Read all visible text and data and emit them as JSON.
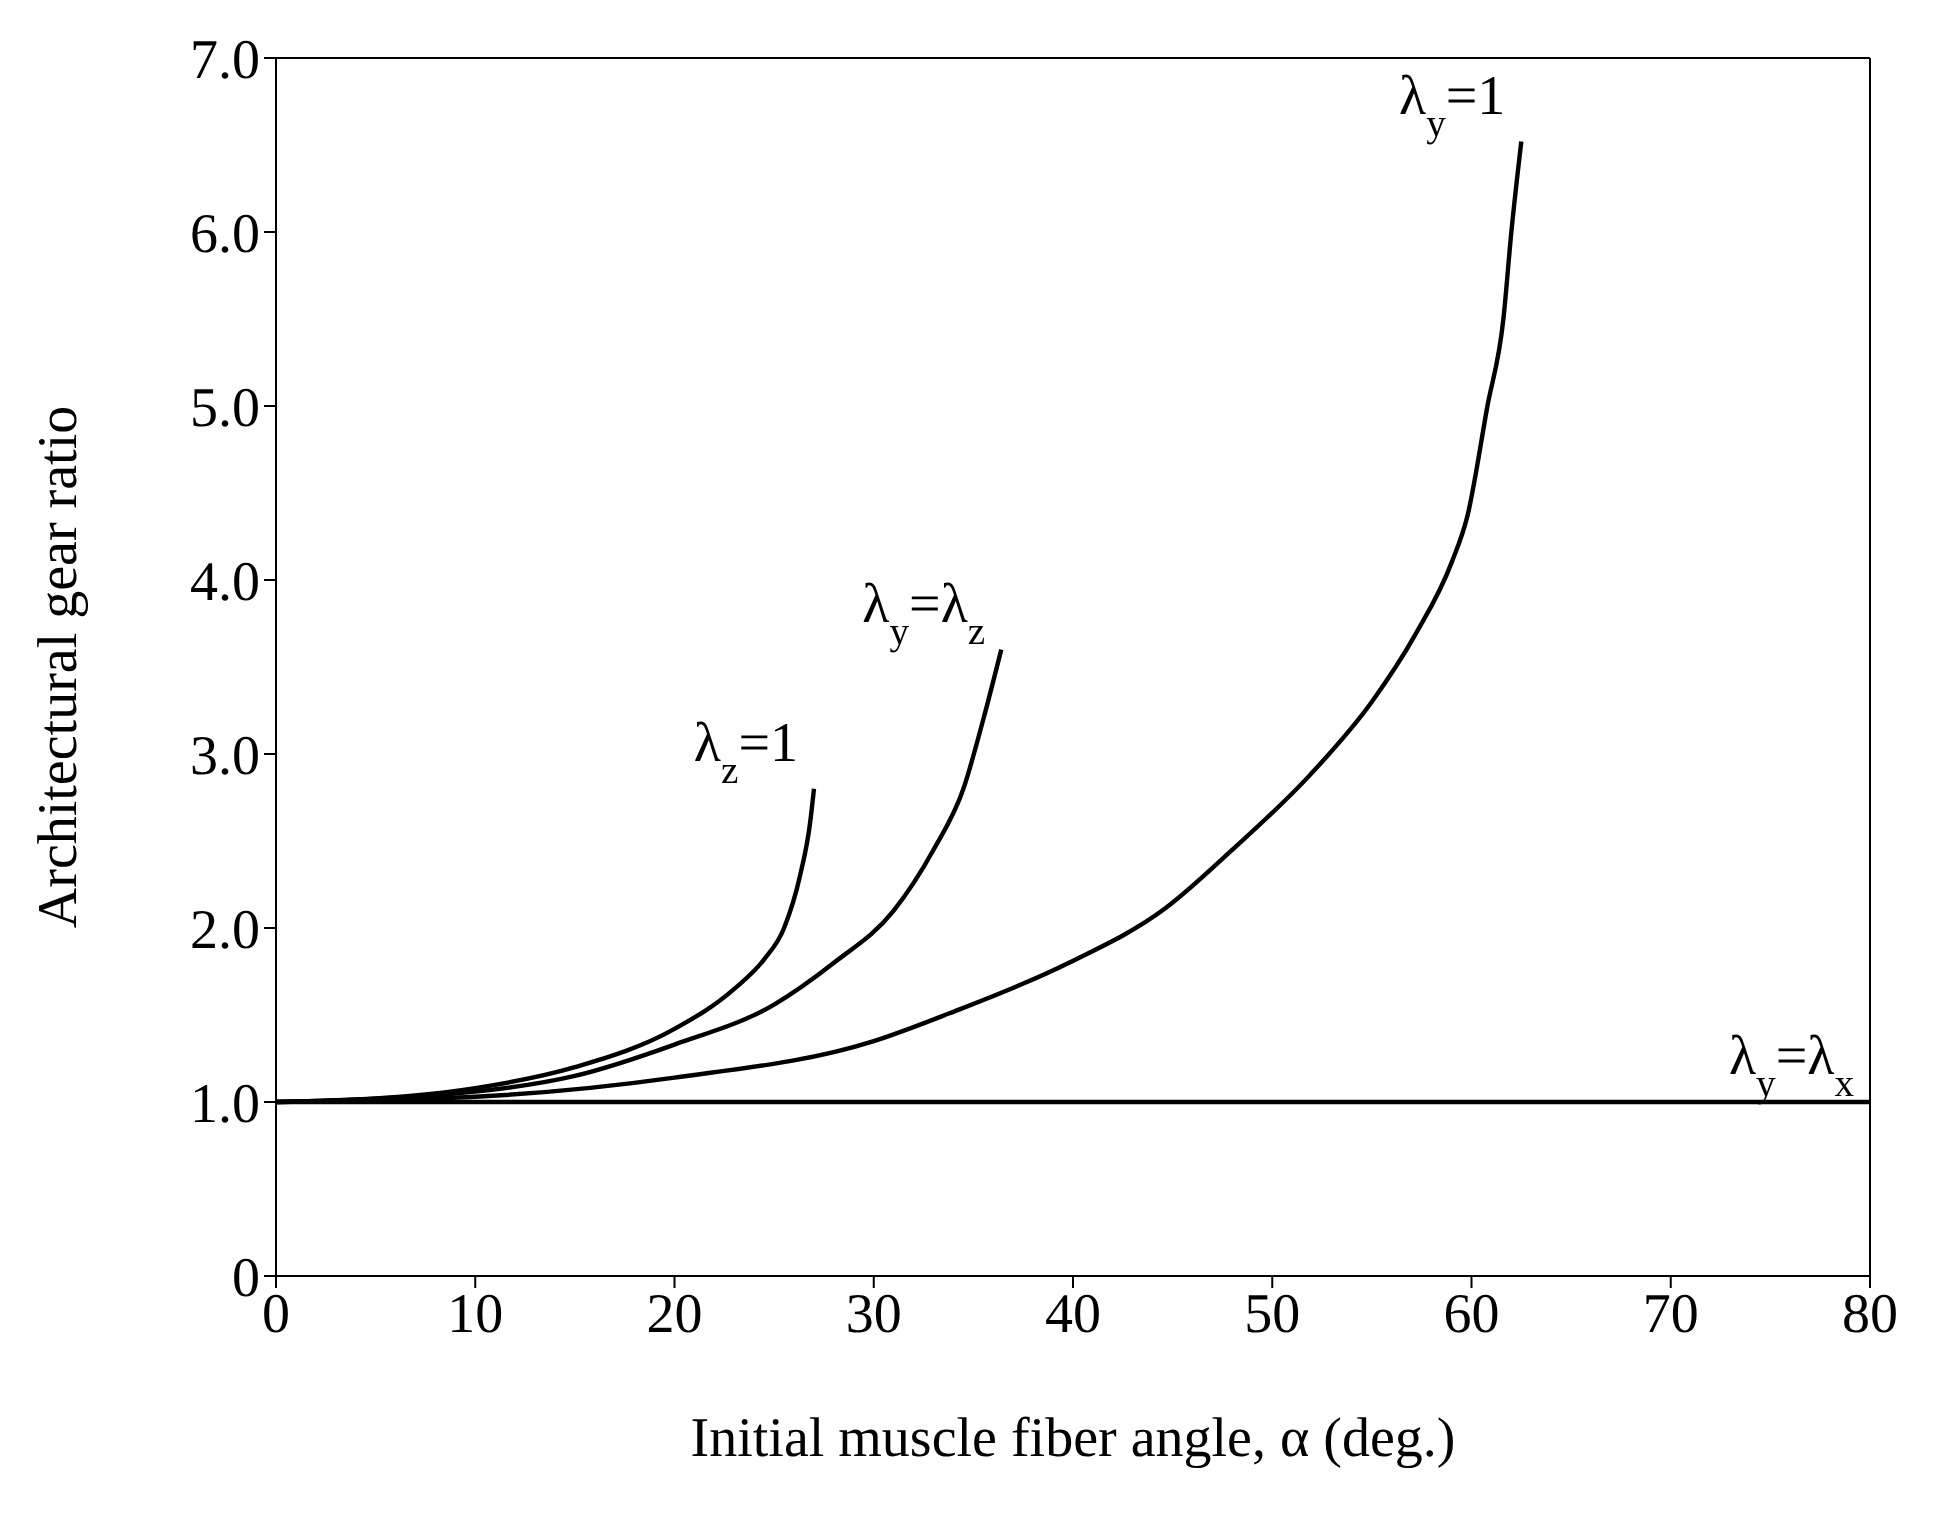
{
  "chart_data": {
    "type": "line",
    "xlabel": "Initial muscle fiber angle, α (deg.)",
    "ylabel": "Architectural gear ratio",
    "xlim": [
      0,
      80
    ],
    "xticks": [
      0,
      10,
      20,
      30,
      40,
      50,
      60,
      70,
      80
    ],
    "ylim": [
      0,
      7
    ],
    "yticks": [
      0,
      {
        "value": 1,
        "label": "1.0"
      },
      {
        "value": 2,
        "label": "2.0"
      },
      {
        "value": 3,
        "label": "3.0"
      },
      {
        "value": 4,
        "label": "4.0"
      },
      {
        "value": 5,
        "label": "5.0"
      },
      {
        "value": 6,
        "label": "6.0"
      },
      {
        "value": 7,
        "label": "7.0"
      }
    ],
    "line_style": "solid",
    "series": [
      {
        "name": "λ$_{z}$=1",
        "color": "#000000",
        "x": [
          0,
          5,
          10,
          15,
          20,
          23,
          24.5,
          25.5,
          26.3,
          26.8,
          27
        ],
        "values": [
          1,
          1.02,
          1.08,
          1.2,
          1.42,
          1.65,
          1.82,
          2.0,
          2.3,
          2.6,
          2.8
        ]
      },
      {
        "name": "λ$_{y}$=λ$_{z}$",
        "color": "#000000",
        "x": [
          0,
          10,
          15,
          20,
          25,
          28,
          31,
          33,
          34.5,
          35.5,
          36.4
        ],
        "values": [
          1,
          1.06,
          1.15,
          1.33,
          1.56,
          1.8,
          2.1,
          2.45,
          2.8,
          3.2,
          3.6
        ]
      },
      {
        "name": "λ$_{y}$=1",
        "color": "#000000",
        "x": [
          0,
          10,
          20,
          30,
          33.8,
          39.8,
          44.6,
          48,
          51.9,
          55,
          57.2,
          59,
          59.8,
          60.8,
          61.6,
          62,
          62.5
        ],
        "values": [
          1,
          1.03,
          1.14,
          1.35,
          1.51,
          1.8,
          2.11,
          2.45,
          2.88,
          3.3,
          3.69,
          4.1,
          4.37,
          5.0,
          5.5,
          6.0,
          6.52
        ]
      },
      {
        "name": "λ$_{y}$=λ$_{x}$",
        "color": "#000000",
        "x": [
          0,
          80
        ],
        "values": [
          1,
          1
        ]
      }
    ]
  }
}
